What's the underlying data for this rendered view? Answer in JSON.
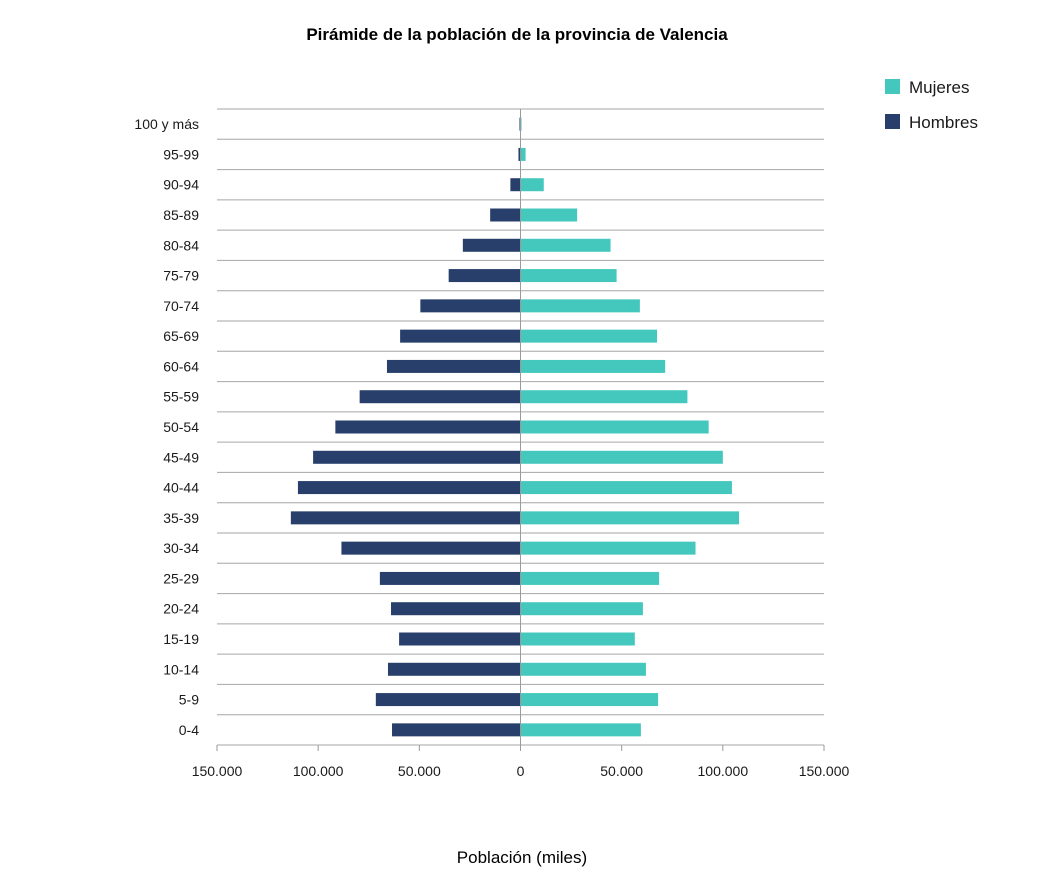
{
  "chart_data": {
    "type": "bar",
    "orientation": "horizontal",
    "layout": "population-pyramid",
    "title": "Pirámide de la población de la provincia de Valencia",
    "xlabel": "Población (miles)",
    "ylabel": "",
    "xlim": [
      -150000,
      150000
    ],
    "x_ticks": [
      -150000,
      -100000,
      -50000,
      0,
      50000,
      100000,
      150000
    ],
    "x_tick_labels": [
      "150.000",
      "100.000",
      "50.000",
      "0",
      "50.000",
      "100.000",
      "150.000"
    ],
    "grid": "horizontal lines between categories",
    "legend_position": "top-right",
    "categories": [
      "0-4",
      "5-9",
      "10-14",
      "15-19",
      "20-24",
      "25-29",
      "30-34",
      "35-39",
      "40-44",
      "45-49",
      "50-54",
      "55-59",
      "60-64",
      "65-69",
      "70-74",
      "75-79",
      "80-84",
      "85-89",
      "90-94",
      "95-99",
      "100 y más"
    ],
    "series": [
      {
        "name": "Mujeres",
        "color": "#44c8be",
        "side": "right",
        "values": [
          59500,
          68000,
          62000,
          56500,
          60500,
          68500,
          86500,
          108000,
          104500,
          100000,
          93000,
          82500,
          71500,
          67500,
          59000,
          47500,
          44500,
          28000,
          11500,
          2500,
          500
        ]
      },
      {
        "name": "Hombres",
        "color": "#283f6b",
        "side": "left",
        "values": [
          63500,
          71500,
          65500,
          60000,
          64000,
          69500,
          88500,
          113500,
          110000,
          102500,
          91500,
          79500,
          66000,
          59500,
          49500,
          35500,
          28500,
          15000,
          5000,
          1000,
          500
        ]
      }
    ]
  }
}
